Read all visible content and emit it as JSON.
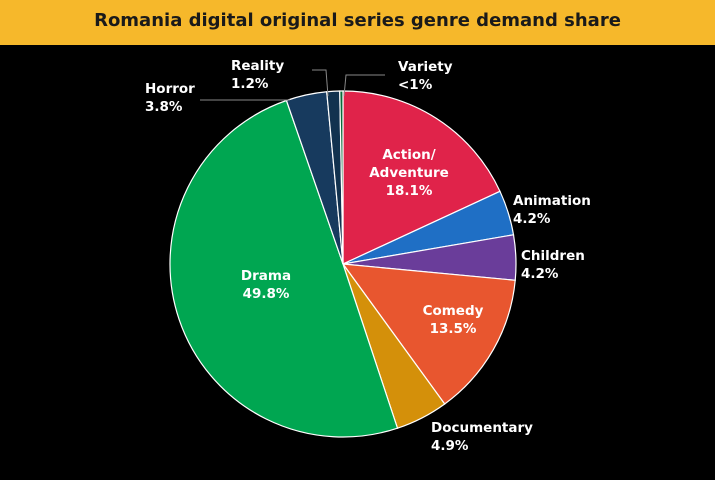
{
  "chart_data": {
    "type": "pie",
    "title": "Romania digital original series genre demand share",
    "categories": [
      "Action/ Adventure",
      "Animation",
      "Children",
      "Comedy",
      "Documentary",
      "Drama",
      "Horror",
      "Reality",
      "Variety"
    ],
    "values": [
      18.1,
      4.2,
      4.2,
      13.5,
      4.9,
      49.8,
      3.8,
      1.2,
      0.3
    ],
    "value_labels": [
      "18.1%",
      "4.2%",
      "4.2%",
      "13.5%",
      "4.9%",
      "49.8%",
      "3.8%",
      "1.2%",
      "<1%"
    ],
    "colors": [
      "#e0234a",
      "#1f6fc5",
      "#6a3d9a",
      "#e8562f",
      "#d4900a",
      "#00a651",
      "#173a5e",
      "#12324f",
      "#0b6b3a"
    ]
  }
}
